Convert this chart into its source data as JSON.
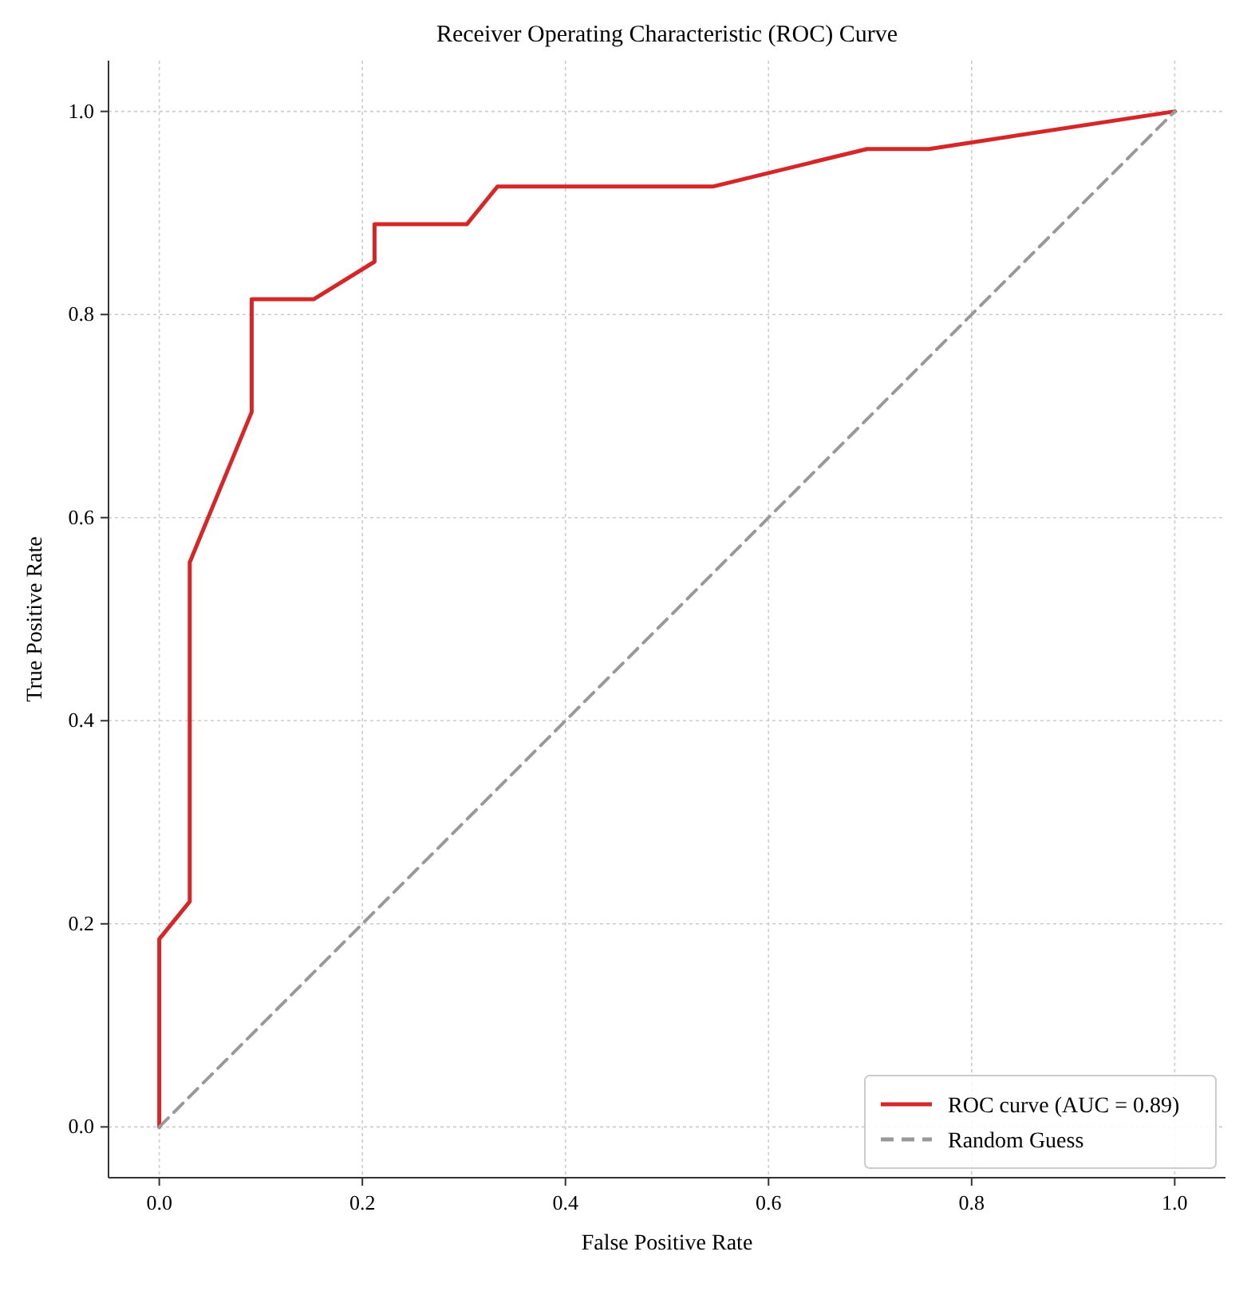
{
  "chart_data": {
    "type": "line",
    "title": "Receiver Operating Characteristic (ROC) Curve",
    "xlabel": "False Positive Rate",
    "ylabel": "True Positive Rate",
    "xlim": [
      -0.05,
      1.05
    ],
    "ylim": [
      -0.05,
      1.05
    ],
    "xticks": [
      {
        "value": 0,
        "label": "0.0"
      },
      {
        "value": 0.2,
        "label": "0.2"
      },
      {
        "value": 0.4,
        "label": "0.4"
      },
      {
        "value": 0.6,
        "label": "0.6"
      },
      {
        "value": 0.8,
        "label": "0.8"
      },
      {
        "value": 1,
        "label": "1.0"
      }
    ],
    "yticks": [
      {
        "value": 0,
        "label": "0.0"
      },
      {
        "value": 0.2,
        "label": "0.2"
      },
      {
        "value": 0.4,
        "label": "0.4"
      },
      {
        "value": 0.6,
        "label": "0.6"
      },
      {
        "value": 0.8,
        "label": "0.8"
      },
      {
        "value": 1,
        "label": "1.0"
      }
    ],
    "grid": true,
    "legend": "bottom right",
    "series": [
      {
        "name": "ROC curve (AUC = 0.89)",
        "color": "#d62728",
        "line_style": "solid",
        "x": [
          0,
          0,
          0.03,
          0.03,
          0.091,
          0.091,
          0.152,
          0.212,
          0.212,
          0.303,
          0.333,
          0.545,
          0.697,
          0.758,
          1.0
        ],
        "values": [
          0,
          0.185,
          0.222,
          0.556,
          0.704,
          0.815,
          0.815,
          0.852,
          0.889,
          0.889,
          0.926,
          0.926,
          0.963,
          0.963,
          1.0
        ]
      },
      {
        "name": "Random Guess",
        "color": "#999999",
        "line_style": "dashed",
        "x": [
          0,
          1
        ],
        "values": [
          0,
          1
        ]
      }
    ]
  }
}
